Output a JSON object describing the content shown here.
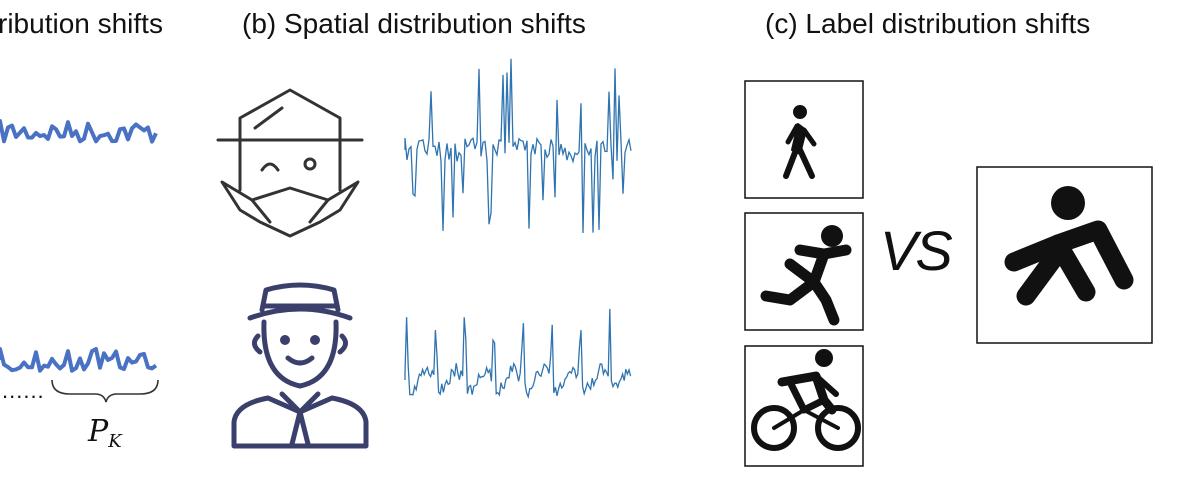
{
  "panels": {
    "a": {
      "title": "ribution shifts"
    },
    "b": {
      "title": "(b) Spatial distribution shifts"
    },
    "c": {
      "title": "(c) Label distribution shifts"
    }
  },
  "segment_label": {
    "base": "P",
    "sub": "K"
  },
  "ellipsis": "......",
  "vs_text": "VS",
  "colors": {
    "signal_thick": "#4a72c4",
    "signal_thin": "#2f74b0",
    "icon_stroke": "#333333",
    "user_navy": "#3b3f6b",
    "pictogram": "#111111"
  },
  "icons": {
    "user_top": "old-man-mustache-icon",
    "user_bottom": "man-hat-icon",
    "activities": [
      "walking-icon",
      "running-icon",
      "cycling-icon"
    ],
    "target_activity": "falling-icon"
  }
}
